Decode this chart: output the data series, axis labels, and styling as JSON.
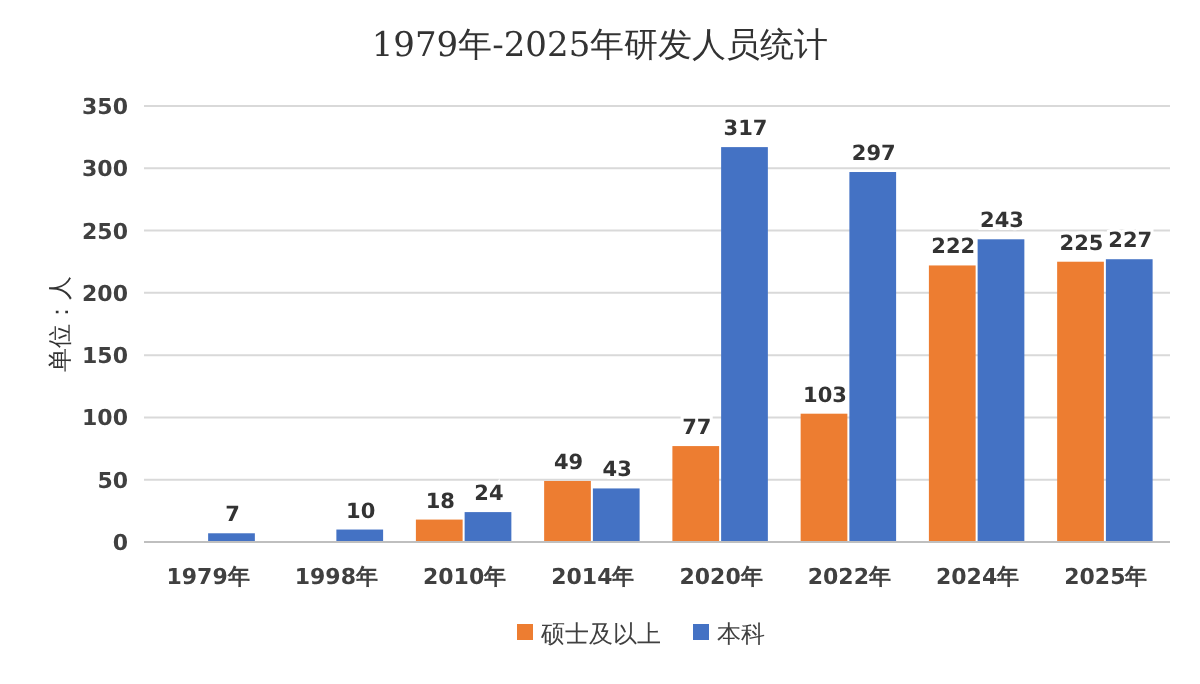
{
  "chart_data": {
    "type": "bar",
    "title": "1979年-2025年研发人员统计",
    "ylabel": "单位：人",
    "categories": [
      "1979年",
      "1998年",
      "2010年",
      "2014年",
      "2020年",
      "2022年",
      "2024年",
      "2025年"
    ],
    "series": [
      {
        "name": "硕士及以上",
        "color": "#ed7d31",
        "values": [
          null,
          null,
          18,
          49,
          77,
          103,
          222,
          225
        ]
      },
      {
        "name": "本科",
        "color": "#4472c4",
        "values": [
          7,
          10,
          24,
          43,
          317,
          297,
          243,
          227
        ]
      }
    ],
    "ylim": [
      0,
      350
    ],
    "yticks": [
      0,
      50,
      100,
      150,
      200,
      250,
      300,
      350
    ],
    "grid": "y",
    "legend": "bottom",
    "data_labels": true
  }
}
